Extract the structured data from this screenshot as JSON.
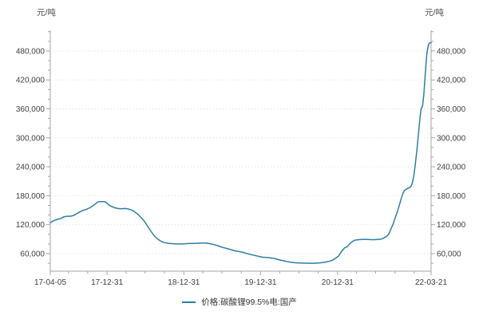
{
  "chart_data": {
    "type": "line",
    "title": "",
    "unit_left": "元/吨",
    "unit_right": "元/吨",
    "legend_label": "价格:碳酸锂99.5%电:国产",
    "line_color": "#2e7da1",
    "colors": {
      "grid": "#dfdfdf",
      "axis": "#a5a5a5",
      "text": "#3d3d3d"
    },
    "grid": "dotted-horizontal-major",
    "legend_position": "bottom-center",
    "y_axis": {
      "major_min": 60000,
      "major_max": 480000,
      "major_step": 60000,
      "minor_min": 40000,
      "minor_max": 520000,
      "minor_step": 20000,
      "tick_labels": [
        "60,000",
        "120,000",
        "180,000",
        "240,000",
        "300,000",
        "360,000",
        "420,000",
        "480,000"
      ]
    },
    "x_axis": {
      "start": "2017-04-05",
      "end": "2022-03-21",
      "minor_ticks": "quarter-ends",
      "ticks": [
        {
          "date": "2017-04-05",
          "label": "17-04-05"
        },
        {
          "date": "2017-12-31",
          "label": "17-12-31"
        },
        {
          "date": "2018-12-31",
          "label": "18-12-31"
        },
        {
          "date": "2019-12-31",
          "label": "19-12-31"
        },
        {
          "date": "2020-12-31",
          "label": "20-12-31"
        },
        {
          "date": "2022-03-21",
          "label": "22-03-21"
        }
      ]
    },
    "series_name": "价格:碳酸锂99.5%电:国产",
    "points": [
      [
        "2017-04-05",
        124000
      ],
      [
        "2017-04-15",
        127000
      ],
      [
        "2017-04-25",
        129000
      ],
      [
        "2017-05-10",
        131000
      ],
      [
        "2017-05-25",
        133000
      ],
      [
        "2017-06-10",
        136500
      ],
      [
        "2017-06-25",
        137500
      ],
      [
        "2017-07-10",
        137500
      ],
      [
        "2017-07-25",
        139000
      ],
      [
        "2017-08-10",
        143000
      ],
      [
        "2017-08-25",
        147000
      ],
      [
        "2017-09-10",
        150000
      ],
      [
        "2017-09-25",
        152000
      ],
      [
        "2017-10-10",
        155000
      ],
      [
        "2017-10-25",
        159000
      ],
      [
        "2017-11-05",
        163000
      ],
      [
        "2017-11-15",
        166500
      ],
      [
        "2017-11-25",
        168000
      ],
      [
        "2017-12-10",
        168000
      ],
      [
        "2017-12-20",
        167500
      ],
      [
        "2017-12-28",
        165500
      ],
      [
        "2018-01-08",
        161000
      ],
      [
        "2018-01-20",
        158000
      ],
      [
        "2018-02-05",
        155000
      ],
      [
        "2018-02-20",
        153500
      ],
      [
        "2018-03-10",
        153000
      ],
      [
        "2018-03-25",
        153500
      ],
      [
        "2018-04-10",
        152500
      ],
      [
        "2018-04-25",
        150500
      ],
      [
        "2018-05-10",
        147000
      ],
      [
        "2018-05-25",
        142000
      ],
      [
        "2018-06-10",
        135000
      ],
      [
        "2018-06-25",
        128000
      ],
      [
        "2018-07-10",
        118000
      ],
      [
        "2018-07-25",
        108000
      ],
      [
        "2018-08-10",
        98000
      ],
      [
        "2018-08-25",
        91500
      ],
      [
        "2018-09-10",
        86500
      ],
      [
        "2018-09-25",
        83500
      ],
      [
        "2018-10-10",
        82000
      ],
      [
        "2018-10-25",
        81000
      ],
      [
        "2018-11-10",
        80500
      ],
      [
        "2018-11-25",
        80000
      ],
      [
        "2018-12-10",
        80000
      ],
      [
        "2018-12-25",
        80000
      ],
      [
        "2019-01-10",
        80500
      ],
      [
        "2019-01-25",
        81000
      ],
      [
        "2019-02-10",
        81000
      ],
      [
        "2019-02-25",
        81500
      ],
      [
        "2019-03-10",
        81500
      ],
      [
        "2019-03-25",
        82000
      ],
      [
        "2019-04-10",
        82000
      ],
      [
        "2019-04-25",
        81500
      ],
      [
        "2019-05-10",
        80000
      ],
      [
        "2019-05-25",
        78500
      ],
      [
        "2019-06-10",
        76500
      ],
      [
        "2019-06-25",
        74000
      ],
      [
        "2019-07-10",
        72000
      ],
      [
        "2019-07-25",
        70500
      ],
      [
        "2019-08-10",
        68500
      ],
      [
        "2019-08-25",
        66500
      ],
      [
        "2019-09-10",
        65000
      ],
      [
        "2019-09-25",
        64000
      ],
      [
        "2019-10-10",
        62500
      ],
      [
        "2019-10-25",
        60500
      ],
      [
        "2019-11-10",
        58500
      ],
      [
        "2019-11-25",
        57000
      ],
      [
        "2019-12-10",
        55500
      ],
      [
        "2019-12-25",
        54000
      ],
      [
        "2020-01-10",
        52500
      ],
      [
        "2020-01-25",
        52000
      ],
      [
        "2020-02-10",
        51500
      ],
      [
        "2020-02-25",
        50500
      ],
      [
        "2020-03-10",
        49500
      ],
      [
        "2020-03-25",
        47500
      ],
      [
        "2020-04-10",
        46000
      ],
      [
        "2020-04-25",
        44500
      ],
      [
        "2020-05-10",
        43000
      ],
      [
        "2020-05-25",
        42000
      ],
      [
        "2020-06-10",
        41200
      ],
      [
        "2020-06-25",
        40800
      ],
      [
        "2020-07-10",
        40500
      ],
      [
        "2020-08-01",
        40200
      ],
      [
        "2020-08-20",
        40000
      ],
      [
        "2020-09-10",
        40000
      ],
      [
        "2020-10-01",
        40500
      ],
      [
        "2020-10-20",
        41500
      ],
      [
        "2020-11-05",
        42500
      ],
      [
        "2020-11-20",
        44000
      ],
      [
        "2020-12-05",
        46000
      ],
      [
        "2020-12-20",
        50000
      ],
      [
        "2021-01-05",
        55000
      ],
      [
        "2021-01-15",
        62000
      ],
      [
        "2021-01-25",
        68000
      ],
      [
        "2021-02-03",
        72000
      ],
      [
        "2021-02-12",
        73500
      ],
      [
        "2021-02-22",
        78000
      ],
      [
        "2021-03-05",
        83000
      ],
      [
        "2021-03-15",
        86000
      ],
      [
        "2021-03-25",
        88000
      ],
      [
        "2021-04-10",
        89000
      ],
      [
        "2021-04-25",
        89500
      ],
      [
        "2021-05-10",
        89800
      ],
      [
        "2021-05-25",
        89500
      ],
      [
        "2021-06-10",
        89000
      ],
      [
        "2021-06-25",
        89000
      ],
      [
        "2021-07-10",
        89300
      ],
      [
        "2021-07-25",
        90000
      ],
      [
        "2021-08-05",
        91500
      ],
      [
        "2021-08-20",
        95500
      ],
      [
        "2021-09-01",
        101000
      ],
      [
        "2021-09-12",
        112000
      ],
      [
        "2021-09-22",
        122000
      ],
      [
        "2021-10-02",
        135000
      ],
      [
        "2021-10-12",
        148000
      ],
      [
        "2021-10-22",
        162000
      ],
      [
        "2021-11-01",
        177000
      ],
      [
        "2021-11-08",
        186000
      ],
      [
        "2021-11-15",
        191000
      ],
      [
        "2021-11-25",
        194000
      ],
      [
        "2021-12-05",
        196000
      ],
      [
        "2021-12-15",
        199000
      ],
      [
        "2021-12-22",
        207000
      ],
      [
        "2021-12-29",
        222000
      ],
      [
        "2022-01-05",
        245000
      ],
      [
        "2022-01-12",
        272000
      ],
      [
        "2022-01-18",
        300000
      ],
      [
        "2022-01-24",
        328000
      ],
      [
        "2022-01-28",
        345000
      ],
      [
        "2022-02-02",
        361000
      ],
      [
        "2022-02-08",
        365000
      ],
      [
        "2022-02-14",
        388000
      ],
      [
        "2022-02-19",
        418000
      ],
      [
        "2022-02-24",
        448000
      ],
      [
        "2022-03-01",
        475000
      ],
      [
        "2022-03-07",
        490000
      ],
      [
        "2022-03-12",
        496000
      ],
      [
        "2022-03-21",
        497500
      ]
    ]
  }
}
